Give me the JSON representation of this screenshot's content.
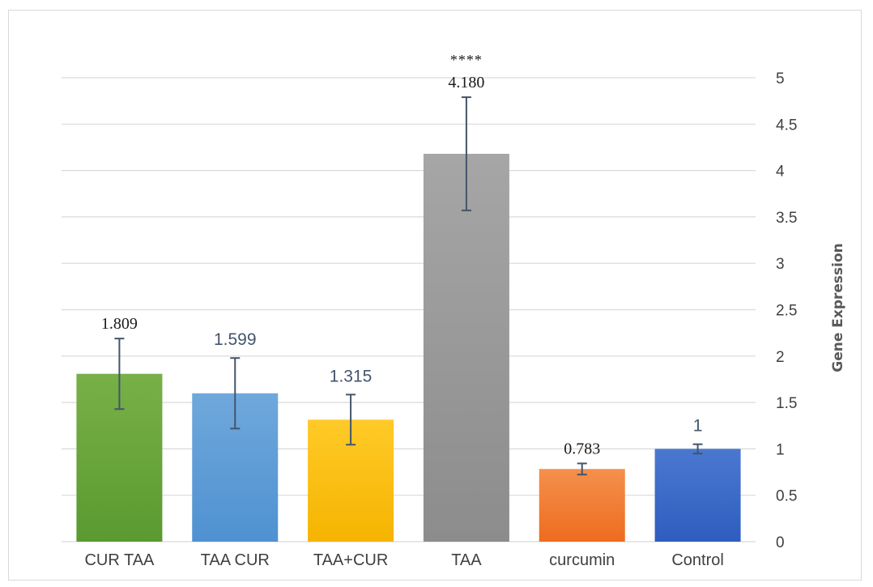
{
  "chart_data": {
    "type": "bar",
    "title": "",
    "xlabel": "",
    "ylabel": "Gene Expression",
    "ylim": [
      0,
      5
    ],
    "yticks": [
      0,
      0.5,
      1,
      1.5,
      2,
      2.5,
      3,
      3.5,
      4,
      4.5,
      5
    ],
    "ytick_labels": [
      "0",
      "0.5",
      "1",
      "1.5",
      "2",
      "2.5",
      "3",
      "3.5",
      "4",
      "4.5",
      "5"
    ],
    "y_axis_side": "right",
    "grid": true,
    "categories": [
      "CUR TAA",
      "TAA CUR",
      "TAA+CUR",
      "TAA",
      "curcumin",
      "Control"
    ],
    "values": [
      1.809,
      1.599,
      1.315,
      4.18,
      0.783,
      1
    ],
    "error": [
      0.38,
      0.38,
      0.27,
      0.61,
      0.06,
      0.05
    ],
    "data_labels": [
      "1.809",
      "1.599",
      "1.315",
      "4.180",
      "0.783",
      "1"
    ],
    "annotations": [
      {
        "category": "TAA",
        "text": "****"
      }
    ],
    "colors": {
      "bar_tops": [
        "#78b047",
        "#6fa8dc",
        "#ffca28",
        "#a6a6a6",
        "#f4904c",
        "#4a78d0"
      ],
      "bar_bottoms": [
        "#5a9a30",
        "#4f91d1",
        "#f5b400",
        "#8c8c8c",
        "#ee6c1f",
        "#2f5dbf"
      ],
      "error_bar": "#44546a",
      "grid": "#d9d9d9"
    }
  }
}
